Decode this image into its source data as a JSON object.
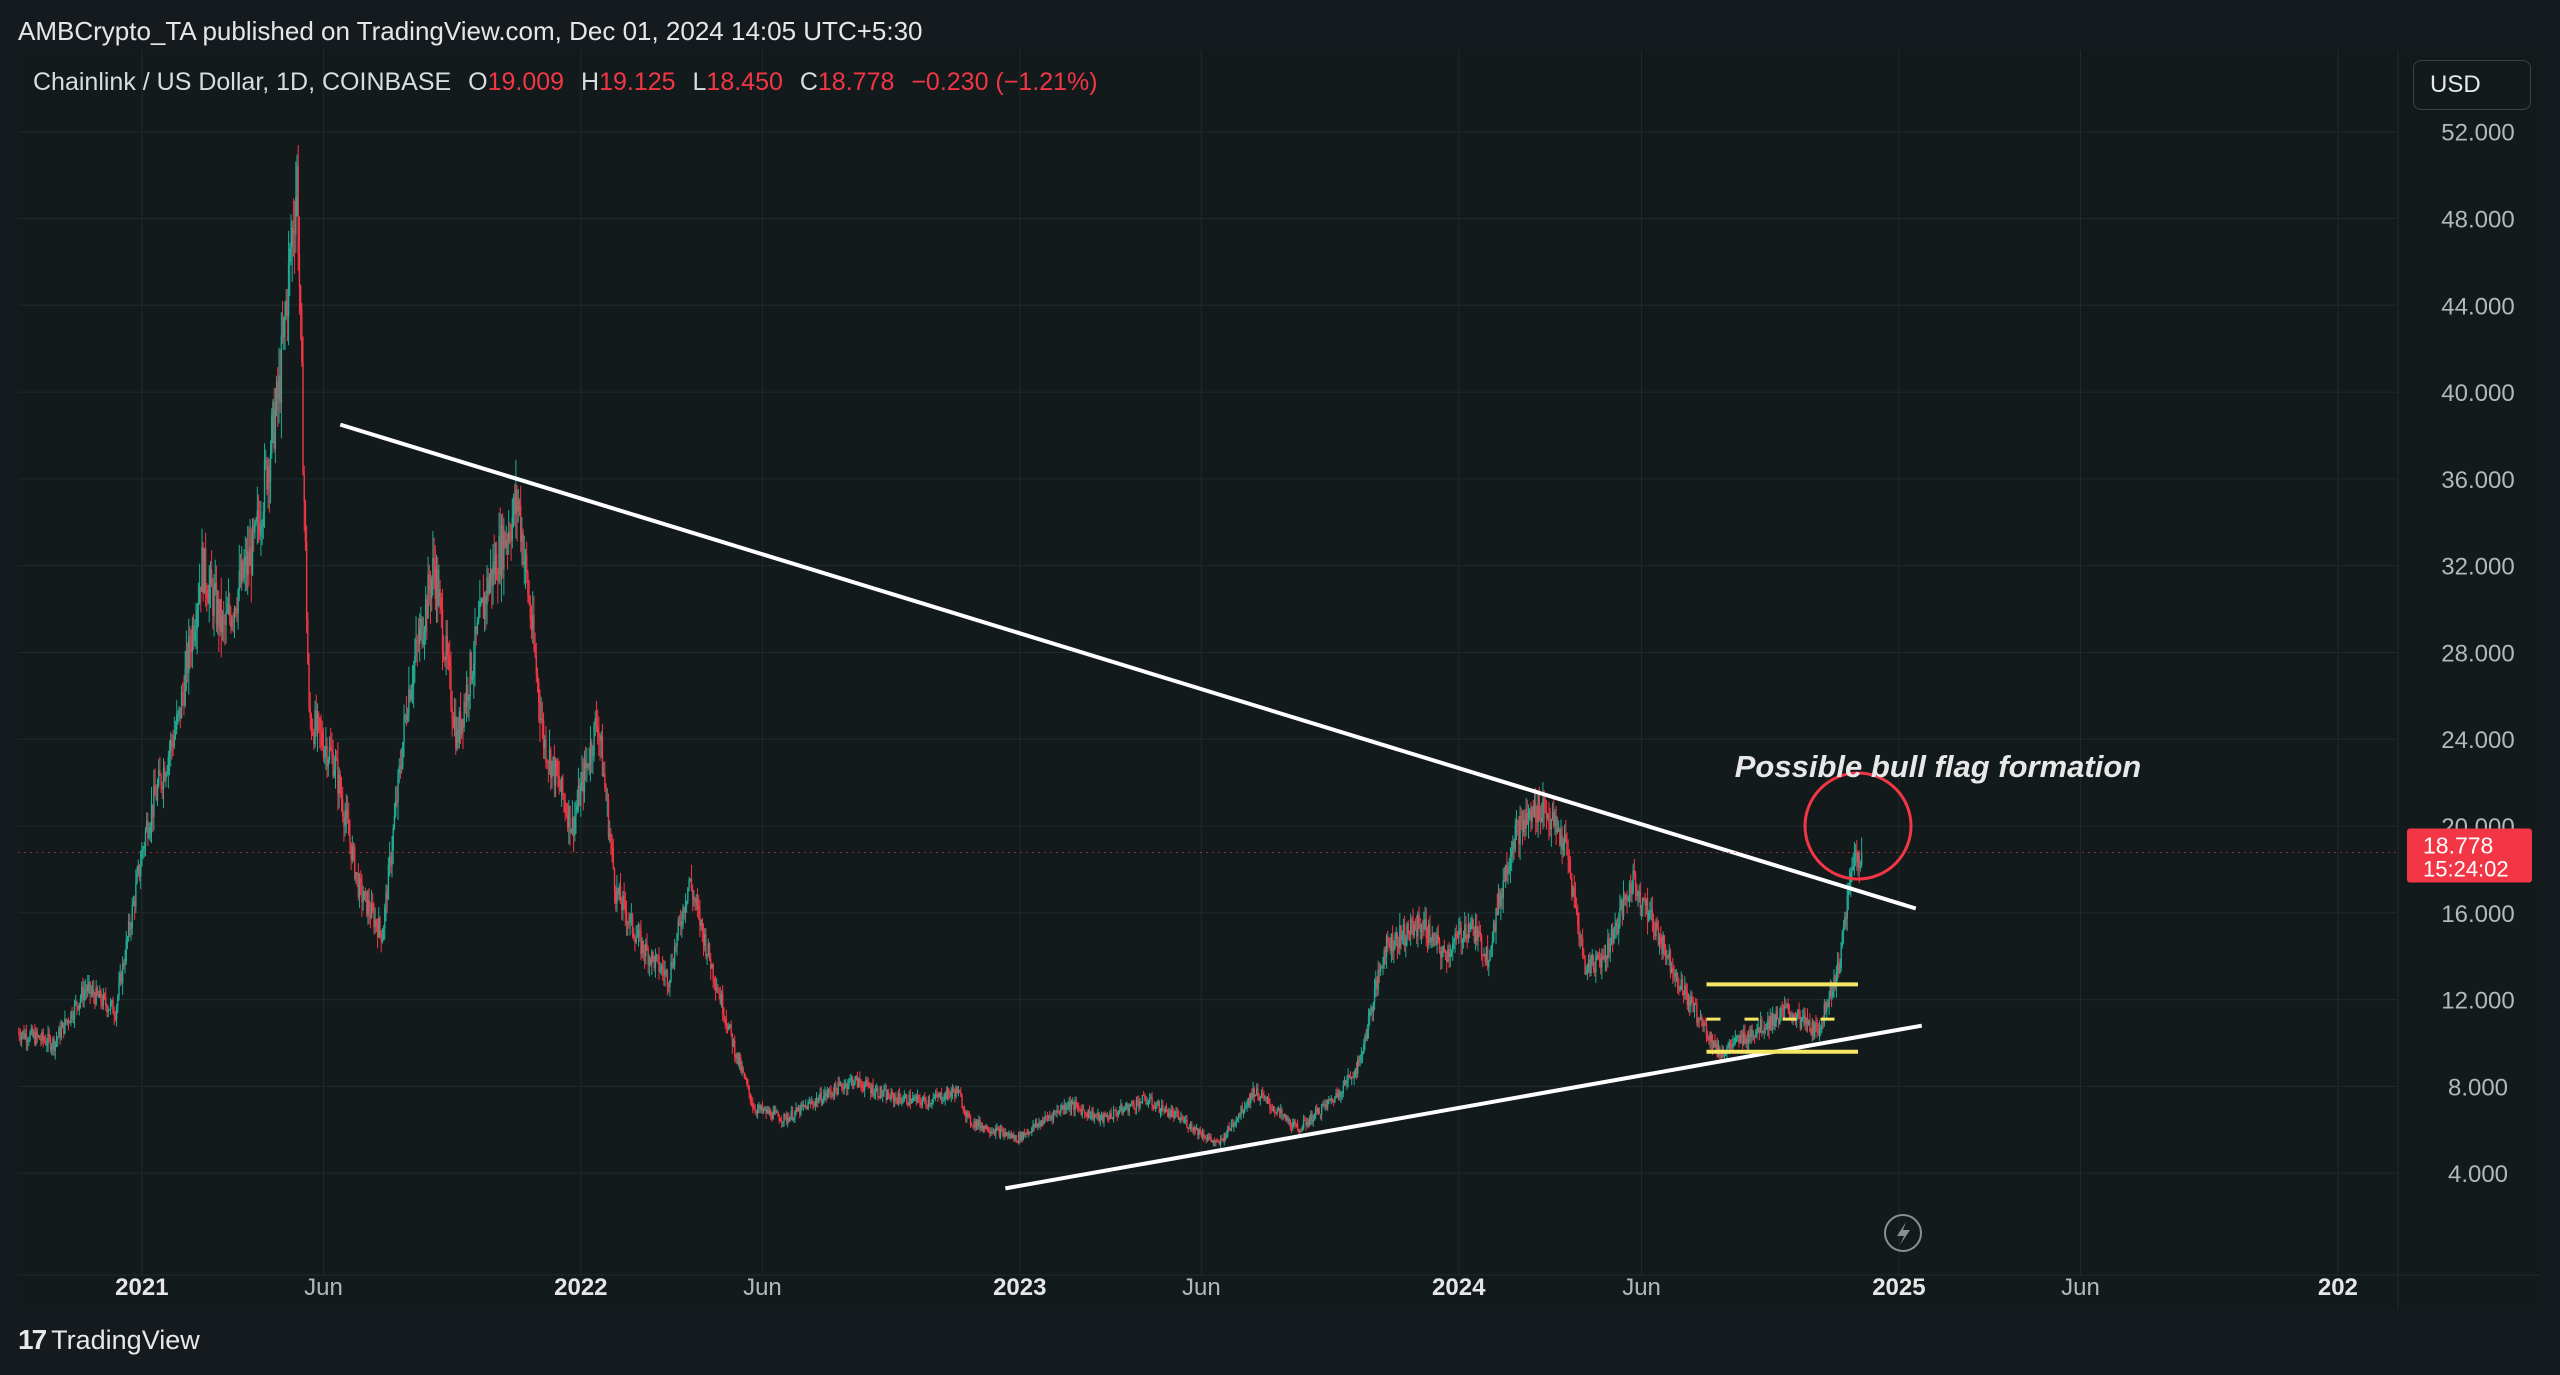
{
  "header": {
    "publisher_line": "AMBCrypto_TA published on TradingView.com, Dec 01, 2024 14:05 UTC+5:30"
  },
  "legend": {
    "symbol": "Chainlink / US Dollar, 1D, COINBASE",
    "open_label": "O",
    "open": "19.009",
    "high_label": "H",
    "high": "19.125",
    "low_label": "L",
    "low": "18.450",
    "close_label": "C",
    "close": "18.778",
    "change": "−0.230 (−1.21%)"
  },
  "currency_button": "USD",
  "price_label": {
    "price": "18.778",
    "countdown": "15:24:02"
  },
  "footer": {
    "logo_text": "TradingView"
  },
  "colors": {
    "up": "#22ab94",
    "down": "#f23645",
    "grid": "#1e2a2e",
    "trendline": "#ffffff",
    "flag": "#f5e663",
    "circle": "#f23645"
  },
  "icons": {
    "alert_marker": "lightning-icon"
  },
  "chart_data": {
    "type": "candlestick",
    "title": "Chainlink / US Dollar, 1D, COINBASE",
    "y_ticks": [
      "4.000",
      "8.000",
      "12.000",
      "16.000",
      "20.000",
      "24.000",
      "28.000",
      "32.000",
      "36.000",
      "40.000",
      "44.000",
      "48.000",
      "52.000"
    ],
    "x_ticks": [
      {
        "label": "2021",
        "date": "2021-01-01",
        "bold": true
      },
      {
        "label": "Jun",
        "date": "2021-06-01",
        "bold": false
      },
      {
        "label": "2022",
        "date": "2022-01-01",
        "bold": true
      },
      {
        "label": "Jun",
        "date": "2022-06-01",
        "bold": false
      },
      {
        "label": "2023",
        "date": "2023-01-01",
        "bold": true
      },
      {
        "label": "Jun",
        "date": "2023-06-01",
        "bold": false
      },
      {
        "label": "2024",
        "date": "2024-01-01",
        "bold": true
      },
      {
        "label": "Jun",
        "date": "2024-06-01",
        "bold": false
      },
      {
        "label": "2025",
        "date": "2025-01-01",
        "bold": true
      },
      {
        "label": "Jun",
        "date": "2025-06-01",
        "bold": false
      },
      {
        "label": "202",
        "date": "2026-01-01",
        "bold": true
      }
    ],
    "x_range": [
      "2020-09-20",
      "2026-02-20"
    ],
    "y_range": [
      0,
      53
    ],
    "grid": true,
    "price_path": [
      [
        "2020-09-20",
        10.5
      ],
      [
        "2020-10-20",
        10.0
      ],
      [
        "2020-11-15",
        12.5
      ],
      [
        "2020-12-10",
        11.5
      ],
      [
        "2021-01-05",
        20.0
      ],
      [
        "2021-02-01",
        25.0
      ],
      [
        "2021-02-20",
        32.0
      ],
      [
        "2021-03-10",
        29.0
      ],
      [
        "2021-04-05",
        33.0
      ],
      [
        "2021-04-25",
        40.0
      ],
      [
        "2021-05-10",
        50.0
      ],
      [
        "2021-05-20",
        25.0
      ],
      [
        "2021-06-10",
        23.0
      ],
      [
        "2021-07-01",
        17.0
      ],
      [
        "2021-07-20",
        15.0
      ],
      [
        "2021-08-10",
        26.0
      ],
      [
        "2021-09-01",
        32.0
      ],
      [
        "2021-09-20",
        24.0
      ],
      [
        "2021-10-15",
        31.0
      ],
      [
        "2021-11-10",
        35.0
      ],
      [
        "2021-12-01",
        24.0
      ],
      [
        "2021-12-25",
        20.0
      ],
      [
        "2022-01-15",
        25.0
      ],
      [
        "2022-01-30",
        17.0
      ],
      [
        "2022-02-20",
        14.5
      ],
      [
        "2022-03-15",
        13.0
      ],
      [
        "2022-04-01",
        17.5
      ],
      [
        "2022-04-20",
        13.5
      ],
      [
        "2022-05-10",
        9.5
      ],
      [
        "2022-05-25",
        7.0
      ],
      [
        "2022-06-20",
        6.5
      ],
      [
        "2022-07-20",
        7.5
      ],
      [
        "2022-08-15",
        8.3
      ],
      [
        "2022-09-15",
        7.5
      ],
      [
        "2022-10-15",
        7.3
      ],
      [
        "2022-11-10",
        7.8
      ],
      [
        "2022-11-20",
        6.4
      ],
      [
        "2022-12-30",
        5.6
      ],
      [
        "2023-02-10",
        7.2
      ],
      [
        "2023-03-10",
        6.5
      ],
      [
        "2023-04-15",
        7.4
      ],
      [
        "2023-05-15",
        6.5
      ],
      [
        "2023-06-15",
        5.3
      ],
      [
        "2023-07-15",
        7.8
      ],
      [
        "2023-08-20",
        6.0
      ],
      [
        "2023-09-20",
        7.5
      ],
      [
        "2023-10-10",
        9.0
      ],
      [
        "2023-11-01",
        14.5
      ],
      [
        "2023-12-01",
        15.5
      ],
      [
        "2023-12-20",
        14.0
      ],
      [
        "2024-01-10",
        15.5
      ],
      [
        "2024-01-25",
        14.0
      ],
      [
        "2024-02-15",
        19.5
      ],
      [
        "2024-03-10",
        21.0
      ],
      [
        "2024-03-30",
        19.0
      ],
      [
        "2024-04-15",
        13.5
      ],
      [
        "2024-05-01",
        14.0
      ],
      [
        "2024-05-25",
        17.5
      ],
      [
        "2024-06-15",
        15.0
      ],
      [
        "2024-07-05",
        12.5
      ],
      [
        "2024-08-05",
        9.5
      ],
      [
        "2024-09-01",
        10.5
      ],
      [
        "2024-10-01",
        11.5
      ],
      [
        "2024-10-25",
        10.5
      ],
      [
        "2024-11-12",
        13.5
      ],
      [
        "2024-11-24",
        18.5
      ],
      [
        "2024-12-01",
        18.778
      ]
    ],
    "annotations": {
      "text": "Possible bull flag formation",
      "descending_trendline": [
        [
          "2021-06-15",
          38.5
        ],
        [
          "2025-01-15",
          16.2
        ]
      ],
      "ascending_trendline": [
        [
          "2022-12-20",
          3.3
        ],
        [
          "2025-01-20",
          10.8
        ]
      ],
      "flag_upper": {
        "from": "2024-07-25",
        "to": "2024-11-28",
        "price": 12.7
      },
      "flag_middle": {
        "from": "2024-07-25",
        "to": "2024-11-28",
        "price": 11.1
      },
      "flag_lower": {
        "from": "2024-07-25",
        "to": "2024-11-28",
        "price": 9.6
      },
      "circle_center": [
        "2024-11-28",
        20.0
      ]
    }
  }
}
